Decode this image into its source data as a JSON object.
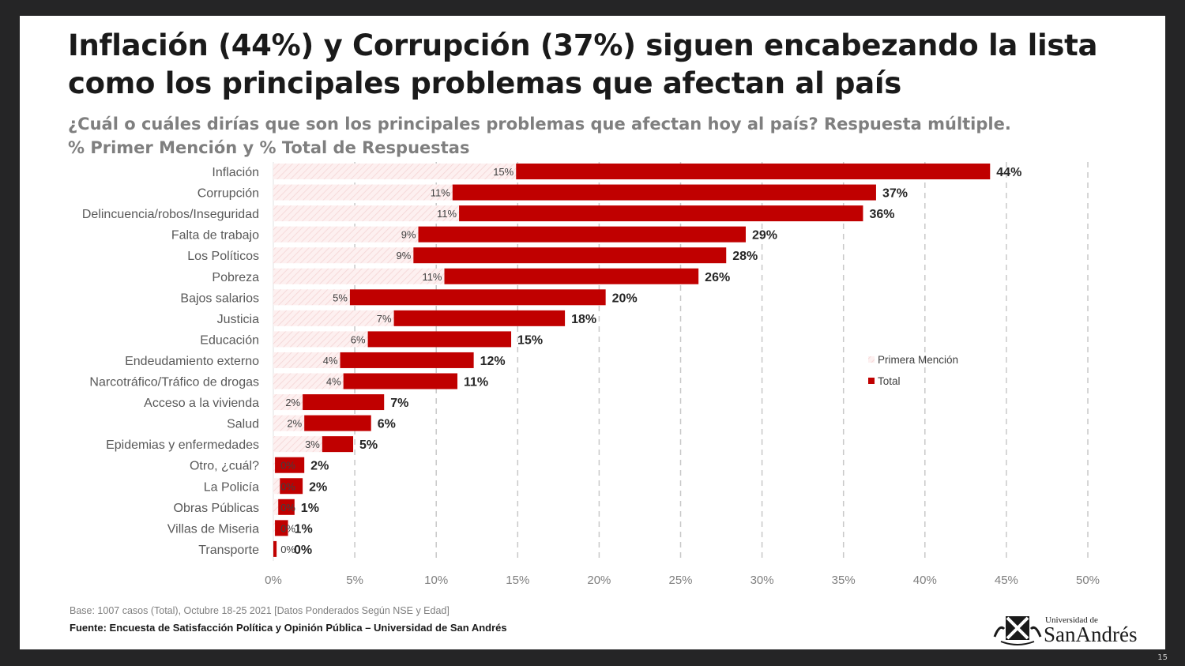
{
  "slide": {
    "title": "Inflación (44%) y Corrupción (37%) siguen encabezando la lista como los principales problemas que afectan al país",
    "subtitle_line1": "¿Cuál o cuáles dirías que son los principales problemas que afectan hoy al país? Respuesta múltiple.",
    "subtitle_line2": "% Primer Mención y % Total de Respuestas",
    "base_note": "Base: 1007 casos (Total), Octubre 18-25 2021 [Datos Ponderados Según NSE y Edad]",
    "source_note": "Fuente: Encuesta de Satisfacción Política y Opinión Pública – Universidad de San Andrés",
    "logo_text_small": "Universidad de",
    "logo_text_large": "SanAndrés",
    "page_number": "15"
  },
  "colors": {
    "total": "#c00000",
    "primera_mencion": "#fbe5e5",
    "grid": "#c8c8c8",
    "background": "#252526"
  },
  "chart_data": {
    "type": "bar",
    "orientation": "horizontal",
    "title": "",
    "xlabel": "",
    "ylabel": "",
    "xlim": [
      0,
      50
    ],
    "xticks": [
      "0%",
      "5%",
      "10%",
      "15%",
      "20%",
      "25%",
      "30%",
      "35%",
      "40%",
      "45%",
      "50%"
    ],
    "grid": "vertical dashed",
    "legend_placement": "right",
    "categories": [
      "Inflación",
      "Corrupción",
      "Delincuencia/robos/Inseguridad",
      "Falta de trabajo",
      "Los Políticos",
      "Pobreza",
      "Bajos salarios",
      "Justicia",
      "Educación",
      "Endeudamiento externo",
      "Narcotráfico/Tráfico de drogas",
      "Acceso a la vivienda",
      "Salud",
      "Epidemias y enfermedades",
      "Otro, ¿cuál?",
      "La Policía",
      "Obras Públicas",
      "Villas de Miseria",
      "Transporte"
    ],
    "series": [
      {
        "name": "Primera Mención",
        "values": [
          14.9,
          11,
          11.4,
          8.9,
          8.6,
          10.5,
          4.7,
          7.4,
          5.8,
          4.1,
          4.3,
          1.8,
          1.9,
          3.0,
          0.1,
          0.4,
          0.3,
          0.1,
          0
        ],
        "labels": [
          "15%",
          "11%",
          "11%",
          "9%",
          "9%",
          "11%",
          "5%",
          "7%",
          "6%",
          "4%",
          "4%",
          "2%",
          "2%",
          "3%",
          "0%",
          "0%",
          "0%",
          "0%",
          "0%"
        ]
      },
      {
        "name": "Total",
        "values": [
          44,
          37,
          36.2,
          29,
          27.8,
          26.1,
          20.4,
          17.9,
          14.6,
          12.3,
          11.3,
          6.8,
          6.0,
          4.9,
          1.9,
          1.8,
          1.3,
          0.9,
          0.2
        ],
        "labels": [
          "44%",
          "37%",
          "36%",
          "29%",
          "28%",
          "26%",
          "20%",
          "18%",
          "15%",
          "12%",
          "11%",
          "7%",
          "6%",
          "5%",
          "2%",
          "2%",
          "1%",
          "1%",
          "0%"
        ]
      }
    ]
  }
}
